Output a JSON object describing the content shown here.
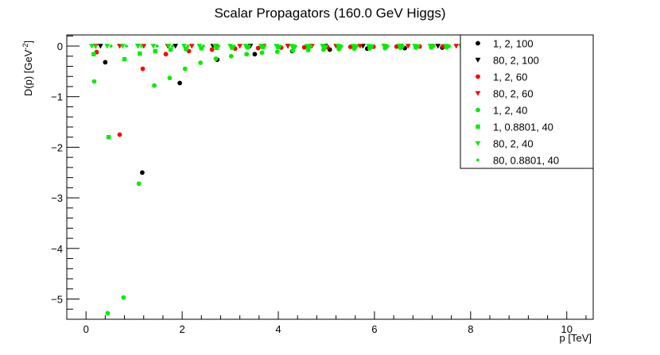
{
  "chart_data": {
    "type": "scatter",
    "title": "Scalar Propagators (160.0 GeV Higgs)",
    "xlabel": "p [TeV]",
    "ylabel": "D(p) [GeV",
    "ylabel_sup": "-2",
    "ylabel_close": "]",
    "xlim": [
      -0.4,
      10.55
    ],
    "ylim": [
      -5.4,
      0.22
    ],
    "x_ticks": [
      0,
      2,
      4,
      6,
      8,
      10
    ],
    "x_tick_labels": [
      "0",
      "2",
      "4",
      "6",
      "8",
      "10"
    ],
    "y_ticks": [
      0,
      -1,
      -2,
      -3,
      -4,
      -5
    ],
    "y_tick_labels": [
      "0",
      "−1",
      "−2",
      "−3",
      "−4",
      "−5"
    ],
    "grid": false,
    "legend_position": "top-right",
    "series": [
      {
        "name": "1, 2, 100",
        "color": "#000000",
        "marker": "circle",
        "points": [
          [
            0.4,
            -0.32
          ],
          [
            1.17,
            -2.5
          ],
          [
            1.95,
            -0.73
          ],
          [
            2.73,
            -0.27
          ],
          [
            3.51,
            -0.16
          ],
          [
            4.29,
            -0.1
          ],
          [
            5.07,
            -0.07
          ],
          [
            5.85,
            -0.05
          ],
          [
            6.63,
            -0.04
          ],
          [
            7.41,
            -0.03
          ],
          [
            8.19,
            -0.025
          ],
          [
            8.97,
            -0.02
          ],
          [
            9.75,
            -0.015
          ],
          [
            10.5,
            -0.01
          ]
        ]
      },
      {
        "name": "80, 2, 100",
        "color": "#000000",
        "marker": "triangle-down",
        "points": [
          [
            0.3,
            0.0
          ],
          [
            1.08,
            0.0
          ],
          [
            1.86,
            0.0
          ],
          [
            2.64,
            0.0
          ],
          [
            3.42,
            0.0
          ],
          [
            4.2,
            0.0
          ],
          [
            4.98,
            0.0
          ],
          [
            5.76,
            0.0
          ],
          [
            6.54,
            0.0
          ],
          [
            7.32,
            0.0
          ],
          [
            8.1,
            0.0
          ],
          [
            8.88,
            0.0
          ],
          [
            9.66,
            0.0
          ],
          [
            10.44,
            0.0
          ]
        ]
      },
      {
        "name": "1, 2, 60",
        "color": "#ff0000",
        "marker": "circle",
        "points": [
          [
            0.22,
            -0.12
          ],
          [
            0.7,
            -1.75
          ],
          [
            1.18,
            -0.45
          ],
          [
            1.66,
            -0.16
          ],
          [
            2.14,
            -0.1
          ],
          [
            2.62,
            -0.07
          ],
          [
            3.1,
            -0.05
          ],
          [
            3.58,
            -0.04
          ],
          [
            4.06,
            -0.03
          ],
          [
            4.54,
            -0.025
          ],
          [
            5.02,
            -0.02
          ],
          [
            5.5,
            -0.015
          ],
          [
            5.98,
            -0.012
          ],
          [
            6.46,
            -0.01
          ],
          [
            6.94,
            -0.008
          ],
          [
            7.42,
            -0.007
          ],
          [
            7.9,
            -0.006
          ],
          [
            8.38,
            -0.005
          ],
          [
            8.86,
            -0.004
          ],
          [
            9.34,
            -0.004
          ],
          [
            9.82,
            -0.003
          ],
          [
            10.5,
            -0.003
          ]
        ]
      },
      {
        "name": "80, 2, 60",
        "color": "#ff0000",
        "marker": "triangle-down",
        "points": [
          [
            0.2,
            0.0
          ],
          [
            0.7,
            0.0
          ],
          [
            1.2,
            0.0
          ],
          [
            1.7,
            0.0
          ],
          [
            2.2,
            0.0
          ],
          [
            2.7,
            0.0
          ],
          [
            3.2,
            0.0
          ],
          [
            3.7,
            0.0
          ],
          [
            4.2,
            0.0
          ],
          [
            4.7,
            0.0
          ],
          [
            5.2,
            0.0
          ],
          [
            5.7,
            0.0
          ],
          [
            6.2,
            0.0
          ],
          [
            6.7,
            0.0
          ],
          [
            7.2,
            0.0
          ],
          [
            7.7,
            0.0
          ],
          [
            8.2,
            0.0
          ],
          [
            8.7,
            0.0
          ],
          [
            9.2,
            0.0
          ],
          [
            9.7,
            0.0
          ],
          [
            10.2,
            0.0
          ]
        ]
      },
      {
        "name": "1, 2, 40",
        "color": "#00ee00",
        "marker": "circle",
        "points": [
          [
            0.17,
            -0.7
          ],
          [
            0.45,
            -5.28
          ],
          [
            0.78,
            -4.97
          ],
          [
            1.1,
            -2.72
          ],
          [
            1.42,
            -0.78
          ],
          [
            1.74,
            -0.63
          ],
          [
            2.06,
            -0.45
          ],
          [
            2.38,
            -0.33
          ],
          [
            2.7,
            -0.25
          ],
          [
            3.02,
            -0.2
          ],
          [
            3.34,
            -0.16
          ],
          [
            3.66,
            -0.13
          ],
          [
            3.98,
            -0.11
          ],
          [
            4.3,
            -0.09
          ],
          [
            4.62,
            -0.08
          ],
          [
            4.94,
            -0.07
          ],
          [
            5.26,
            -0.06
          ],
          [
            5.58,
            -0.05
          ],
          [
            5.9,
            -0.045
          ],
          [
            6.22,
            -0.04
          ],
          [
            6.54,
            -0.035
          ],
          [
            6.86,
            -0.03
          ],
          [
            7.18,
            -0.027
          ],
          [
            7.5,
            -0.024
          ],
          [
            7.82,
            -0.021
          ],
          [
            8.14,
            -0.019
          ],
          [
            8.46,
            -0.017
          ],
          [
            8.78,
            -0.015
          ],
          [
            9.1,
            -0.013
          ],
          [
            9.42,
            -0.012
          ],
          [
            9.74,
            -0.011
          ],
          [
            10.06,
            -0.01
          ],
          [
            10.38,
            -0.009
          ]
        ]
      },
      {
        "name": "1, 0.8801, 40",
        "color": "#00ee00",
        "marker": "square",
        "points": [
          [
            0.16,
            -0.16
          ],
          [
            0.47,
            -1.8
          ],
          [
            0.8,
            -0.26
          ],
          [
            1.12,
            -0.15
          ],
          [
            1.44,
            -0.1
          ],
          [
            1.76,
            -0.07
          ],
          [
            2.08,
            -0.055
          ],
          [
            2.4,
            -0.045
          ],
          [
            2.72,
            -0.036
          ],
          [
            3.04,
            -0.03
          ],
          [
            3.36,
            -0.025
          ],
          [
            3.68,
            -0.021
          ],
          [
            4.0,
            -0.018
          ],
          [
            4.32,
            -0.016
          ],
          [
            4.64,
            -0.014
          ],
          [
            4.96,
            -0.012
          ],
          [
            5.28,
            -0.011
          ],
          [
            5.6,
            -0.01
          ],
          [
            5.92,
            -0.009
          ],
          [
            6.24,
            -0.008
          ],
          [
            6.56,
            -0.007
          ],
          [
            6.88,
            -0.007
          ],
          [
            7.2,
            -0.006
          ],
          [
            7.52,
            -0.006
          ],
          [
            7.84,
            -0.005
          ],
          [
            8.16,
            -0.005
          ],
          [
            8.48,
            -0.005
          ],
          [
            8.8,
            -0.004
          ],
          [
            9.12,
            -0.004
          ],
          [
            9.44,
            -0.004
          ],
          [
            9.76,
            -0.003
          ],
          [
            10.08,
            -0.003
          ],
          [
            10.4,
            -0.003
          ]
        ]
      },
      {
        "name": "80, 2, 40",
        "color": "#00ee00",
        "marker": "triangle-down",
        "points": [
          [
            0.12,
            0.0
          ],
          [
            0.44,
            0.0
          ],
          [
            0.76,
            0.0
          ],
          [
            1.08,
            0.0
          ],
          [
            1.4,
            0.0
          ],
          [
            1.72,
            0.0
          ],
          [
            2.04,
            0.0
          ],
          [
            2.36,
            0.0
          ],
          [
            2.68,
            0.0
          ],
          [
            3.0,
            0.0
          ],
          [
            3.32,
            0.0
          ],
          [
            3.64,
            0.0
          ],
          [
            3.96,
            0.0
          ],
          [
            4.28,
            0.0
          ],
          [
            4.6,
            0.0
          ],
          [
            4.92,
            0.0
          ],
          [
            5.24,
            0.0
          ],
          [
            5.56,
            0.0
          ],
          [
            5.88,
            0.0
          ],
          [
            6.2,
            0.0
          ],
          [
            6.52,
            0.0
          ],
          [
            6.84,
            0.0
          ],
          [
            7.16,
            0.0
          ],
          [
            7.48,
            0.0
          ],
          [
            7.8,
            0.0
          ],
          [
            8.12,
            0.0
          ],
          [
            8.44,
            0.0
          ],
          [
            8.76,
            0.0
          ],
          [
            9.08,
            0.0
          ],
          [
            9.4,
            0.0
          ],
          [
            9.72,
            0.0
          ],
          [
            10.04,
            0.0
          ],
          [
            10.36,
            0.0
          ]
        ]
      },
      {
        "name": "80, 0.8801, 40",
        "color": "#00ee00",
        "marker": "small-circle",
        "points": [
          [
            0.2,
            0.0
          ],
          [
            0.52,
            0.0
          ],
          [
            0.84,
            0.0
          ],
          [
            1.16,
            0.0
          ],
          [
            1.48,
            0.0
          ],
          [
            1.8,
            0.0
          ],
          [
            2.12,
            0.0
          ],
          [
            2.44,
            0.0
          ],
          [
            2.76,
            0.0
          ],
          [
            3.08,
            0.0
          ],
          [
            3.4,
            0.0
          ],
          [
            3.72,
            0.0
          ],
          [
            4.04,
            0.0
          ],
          [
            4.36,
            0.0
          ],
          [
            4.68,
            0.0
          ],
          [
            5.0,
            0.0
          ],
          [
            5.32,
            0.0
          ],
          [
            5.64,
            0.0
          ],
          [
            5.96,
            0.0
          ],
          [
            6.28,
            0.0
          ],
          [
            6.6,
            0.0
          ],
          [
            6.92,
            0.0
          ],
          [
            7.24,
            0.0
          ],
          [
            7.56,
            0.0
          ],
          [
            7.88,
            0.0
          ],
          [
            8.2,
            0.0
          ],
          [
            8.52,
            0.0
          ],
          [
            8.84,
            0.0
          ],
          [
            9.16,
            0.0
          ],
          [
            9.48,
            0.0
          ],
          [
            9.8,
            0.0
          ],
          [
            10.12,
            0.0
          ],
          [
            10.44,
            0.0
          ]
        ]
      }
    ]
  }
}
